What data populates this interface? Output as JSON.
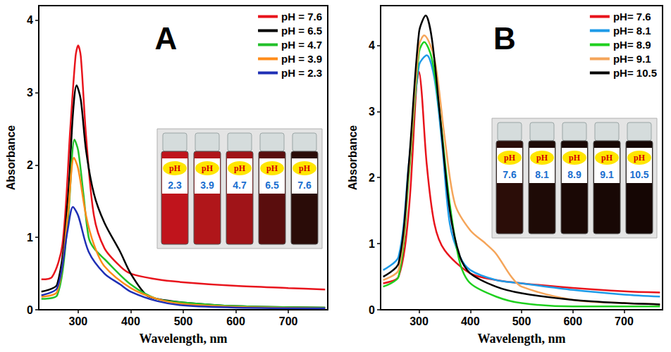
{
  "chart_data": [
    {
      "type": "line",
      "title": "A",
      "x_label": "Wavelength, nm",
      "y_label": "Absorbance",
      "xlim": [
        225,
        775
      ],
      "xticks": [
        300,
        400,
        500,
        600,
        700
      ],
      "ylim": [
        0,
        4.2
      ],
      "yticks": [
        0,
        1,
        2,
        3,
        4
      ],
      "grid": false,
      "legend": "upper right",
      "series": [
        {
          "name": "pH = 7.6",
          "color": "#e8141c",
          "x": [
            230,
            250,
            270,
            285,
            295,
            300,
            305,
            315,
            330,
            350,
            380,
            400,
            450,
            500,
            600,
            700,
            770
          ],
          "values": [
            0.42,
            0.45,
            0.9,
            2.5,
            3.5,
            3.65,
            3.5,
            2.4,
            1.3,
            0.85,
            0.6,
            0.5,
            0.42,
            0.38,
            0.33,
            0.3,
            0.28
          ]
        },
        {
          "name": "pH = 6.5",
          "color": "#000000",
          "x": [
            230,
            260,
            280,
            290,
            297,
            305,
            315,
            330,
            350,
            380,
            400,
            430,
            450,
            500,
            600,
            770
          ],
          "values": [
            0.25,
            0.35,
            1.5,
            2.7,
            3.1,
            2.9,
            2.2,
            1.6,
            1.2,
            0.8,
            0.5,
            0.2,
            0.15,
            0.1,
            0.05,
            0.03
          ]
        },
        {
          "name": "pH = 4.7",
          "color": "#22c02a",
          "x": [
            230,
            260,
            280,
            293,
            300,
            310,
            320,
            330,
            350,
            400,
            450,
            500,
            600,
            770
          ],
          "values": [
            0.15,
            0.2,
            1.2,
            2.35,
            2.2,
            1.6,
            1.0,
            0.85,
            0.7,
            0.35,
            0.15,
            0.1,
            0.05,
            0.03
          ]
        },
        {
          "name": "pH = 3.9",
          "color": "#ff8c1a",
          "x": [
            230,
            260,
            280,
            292,
            300,
            315,
            330,
            350,
            400,
            450,
            500,
            600,
            770
          ],
          "values": [
            0.18,
            0.25,
            1.3,
            2.1,
            1.95,
            1.3,
            0.9,
            0.6,
            0.3,
            0.15,
            0.08,
            0.04,
            0.02
          ]
        },
        {
          "name": "pH = 2.3",
          "color": "#1f2fb5",
          "x": [
            230,
            260,
            280,
            290,
            300,
            320,
            350,
            380,
            400,
            450,
            500,
            600,
            770
          ],
          "values": [
            0.2,
            0.3,
            1.1,
            1.42,
            1.3,
            0.8,
            0.5,
            0.35,
            0.25,
            0.12,
            0.06,
            0.03,
            0.02
          ]
        }
      ],
      "inset": {
        "label": "pH",
        "values": [
          2.3,
          3.9,
          4.7,
          6.5,
          7.6
        ],
        "colors": [
          "#c0141c",
          "#b0161a",
          "#a01418",
          "#5a0d0d",
          "#2a0c08"
        ]
      }
    },
    {
      "type": "line",
      "title": "B",
      "x_label": "Wavelength, nm",
      "y_label": "Absorbance",
      "xlim": [
        225,
        775
      ],
      "xticks": [
        300,
        400,
        500,
        600,
        700
      ],
      "ylim": [
        0,
        4.6
      ],
      "yticks": [
        0,
        1,
        2,
        3,
        4
      ],
      "grid": false,
      "legend": "upper right",
      "series": [
        {
          "name": "pH= 7.6",
          "color": "#e8141c",
          "x": [
            230,
            260,
            280,
            295,
            300,
            305,
            315,
            330,
            350,
            400,
            450,
            500,
            600,
            700,
            770
          ],
          "values": [
            0.4,
            0.5,
            1.5,
            3.4,
            3.6,
            3.3,
            2.2,
            1.3,
            0.9,
            0.55,
            0.45,
            0.4,
            0.33,
            0.28,
            0.26
          ]
        },
        {
          "name": "pH= 8.1",
          "color": "#1e9be8",
          "x": [
            230,
            260,
            280,
            300,
            315,
            330,
            345,
            360,
            380,
            400,
            450,
            500,
            600,
            700,
            770
          ],
          "values": [
            0.6,
            0.8,
            2.2,
            3.7,
            3.85,
            3.5,
            2.5,
            1.3,
            0.8,
            0.6,
            0.45,
            0.4,
            0.3,
            0.23,
            0.2
          ]
        },
        {
          "name": "pH= 8.9",
          "color": "#1fd01f",
          "x": [
            230,
            260,
            280,
            300,
            310,
            325,
            340,
            360,
            380,
            400,
            450,
            500,
            600,
            700,
            770
          ],
          "values": [
            0.35,
            0.5,
            2.0,
            3.9,
            4.05,
            3.8,
            3.0,
            1.6,
            0.7,
            0.4,
            0.2,
            0.1,
            0.05,
            0.05,
            0.05
          ]
        },
        {
          "name": "pH= 9.1",
          "color": "#f5a55a",
          "x": [
            230,
            260,
            280,
            300,
            310,
            330,
            350,
            370,
            400,
            430,
            450,
            480,
            500,
            600,
            700,
            770
          ],
          "values": [
            0.45,
            0.6,
            2.1,
            4.0,
            4.15,
            3.8,
            2.6,
            1.6,
            1.2,
            1.0,
            0.85,
            0.5,
            0.35,
            0.15,
            0.1,
            0.08
          ]
        },
        {
          "name": "pH= 10.5",
          "color": "#000000",
          "x": [
            230,
            260,
            280,
            300,
            313,
            325,
            340,
            360,
            380,
            400,
            450,
            500,
            600,
            700,
            770
          ],
          "values": [
            0.5,
            0.7,
            2.2,
            4.2,
            4.45,
            4.1,
            3.0,
            1.5,
            0.8,
            0.55,
            0.35,
            0.25,
            0.15,
            0.1,
            0.08
          ]
        }
      ],
      "inset": {
        "label": "pH",
        "values": [
          7.6,
          8.1,
          8.9,
          9.1,
          10.5
        ],
        "colors": [
          "#2b0d08",
          "#1e0a06",
          "#1a0805",
          "#180805",
          "#150604"
        ]
      }
    }
  ]
}
